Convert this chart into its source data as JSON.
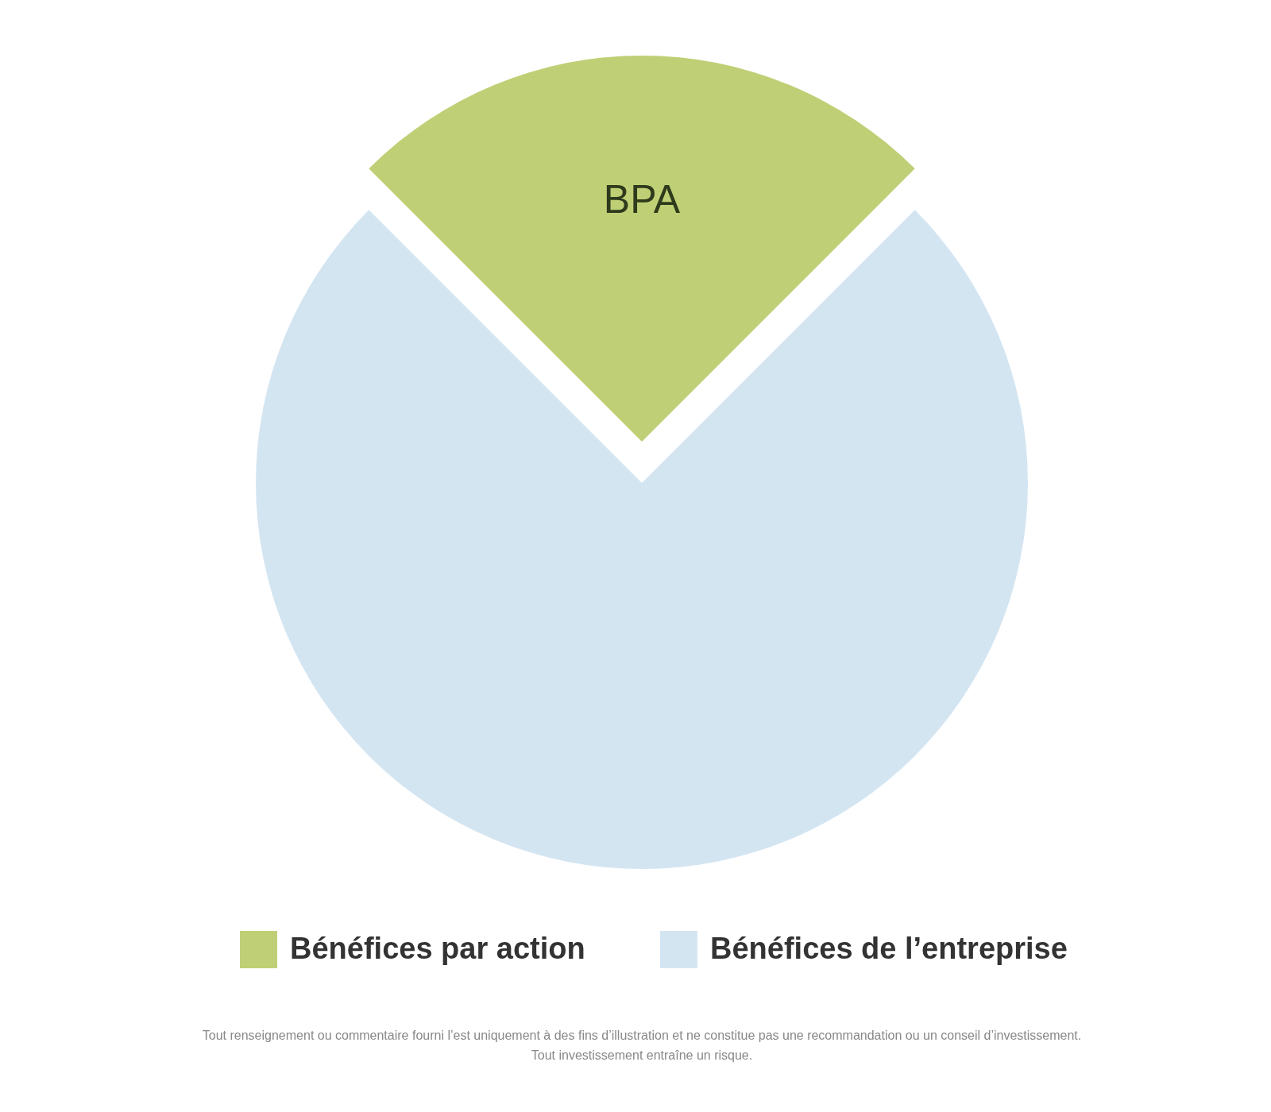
{
  "chart_data": {
    "type": "pie",
    "categories": [
      "Bénéfices par action",
      "Bénéfices de l’entreprise"
    ],
    "values": [
      25,
      75
    ],
    "colors": [
      "#bfcf75",
      "#d4e5f2"
    ],
    "value_labels": [
      "BPA",
      null
    ],
    "legend": "bottom",
    "annotations": [
      "Tout renseignement ou commentaire fourni l’est uniquement à des fins d’illustration et ne constitue pas une recommandation ou un conseil d’investissement.",
      "Tout investissement entraîne un risque."
    ]
  }
}
